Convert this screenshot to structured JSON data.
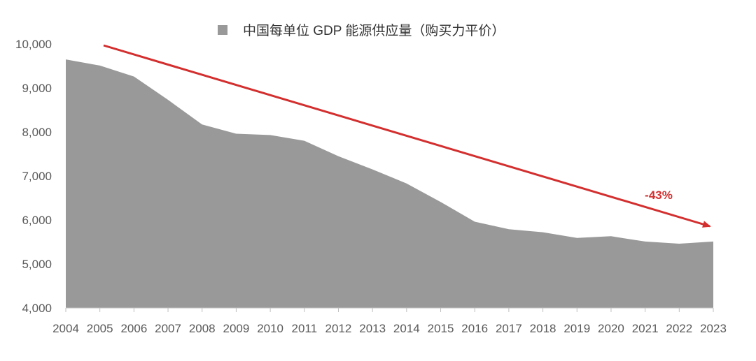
{
  "chart_data": {
    "type": "area",
    "legend": {
      "placement": "top-center",
      "entries": [
        {
          "label": "中国每单位 GDP 能源供应量（购买力平价）",
          "color": "#999999"
        }
      ]
    },
    "x": [
      "2004",
      "2005",
      "2006",
      "2007",
      "2008",
      "2009",
      "2010",
      "2011",
      "2012",
      "2013",
      "2014",
      "2015",
      "2016",
      "2017",
      "2018",
      "2019",
      "2020",
      "2021",
      "2022",
      "2023"
    ],
    "series": [
      {
        "name": "中国每单位 GDP 能源供应量（购买力平价）",
        "color": "#999999",
        "values": [
          9650,
          9510,
          9260,
          8730,
          8170,
          7960,
          7930,
          7800,
          7450,
          7150,
          6830,
          6410,
          5960,
          5790,
          5720,
          5590,
          5630,
          5510,
          5460,
          5510
        ]
      }
    ],
    "ylim": [
      4000,
      10000
    ],
    "yticks": [
      "4,000",
      "5,000",
      "6,000",
      "7,000",
      "8,000",
      "9,000",
      "10,000"
    ],
    "grid": false,
    "annotation": {
      "text": "-43%",
      "color": "#d32f2f",
      "arrow_from": {
        "x": "2005",
        "y": 9980
      },
      "arrow_to": {
        "x": "2023",
        "y": 5850
      }
    }
  }
}
